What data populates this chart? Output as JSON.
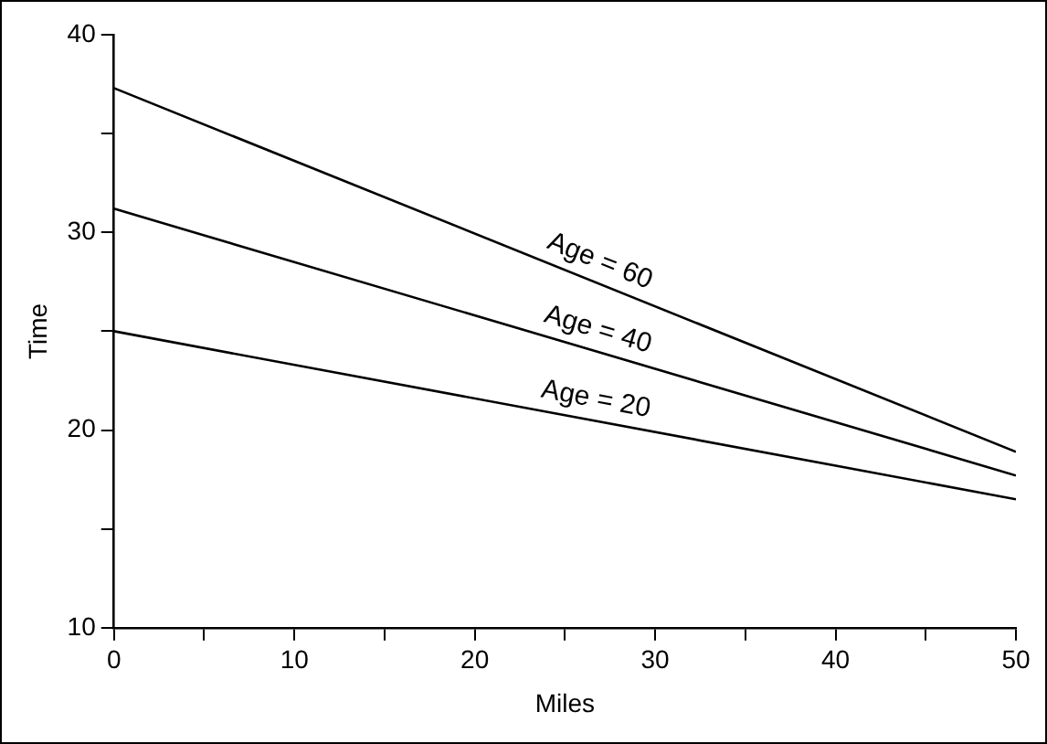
{
  "chart_data": {
    "type": "line",
    "xlabel": "Miles",
    "ylabel": "Time",
    "x": [
      0,
      50
    ],
    "series": [
      {
        "name": "Age = 60",
        "color": "#000000",
        "values": [
          37.3,
          18.9
        ]
      },
      {
        "name": "Age = 40",
        "color": "#000000",
        "values": [
          31.2,
          17.7
        ]
      },
      {
        "name": "Age = 20",
        "color": "#000000",
        "values": [
          25.0,
          16.5
        ]
      }
    ],
    "xlim": [
      0,
      50
    ],
    "xticks": [
      0,
      {
        "value": 5,
        "label": null
      },
      10,
      {
        "value": 15,
        "label": null
      },
      20,
      {
        "value": 25,
        "label": null
      },
      30,
      {
        "value": 35,
        "label": null
      },
      40,
      {
        "value": 45,
        "label": null
      },
      50
    ],
    "ylim": [
      10,
      40
    ],
    "yticks": [
      10,
      {
        "value": 15,
        "label": null
      },
      20,
      {
        "value": 25,
        "label": null
      },
      30,
      {
        "value": 35,
        "label": null
      },
      40
    ],
    "grid": false,
    "legend": false,
    "marker": "none",
    "line_style": "solid"
  }
}
